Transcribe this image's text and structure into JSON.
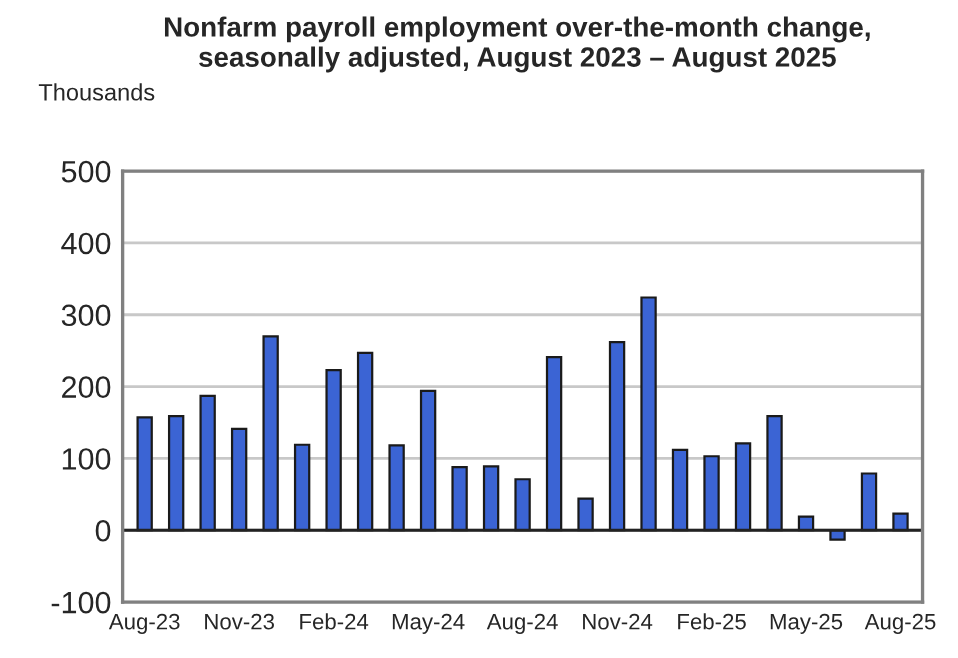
{
  "chart_data": {
    "type": "bar",
    "title": "Nonfarm payroll employment over-the-month change,\nseasonally adjusted, August 2023 – August 2025",
    "ylabel": "Thousands",
    "categories": [
      "Aug-23",
      null,
      null,
      "Nov-23",
      null,
      null,
      "Feb-24",
      null,
      null,
      "May-24",
      null,
      null,
      "Aug-24",
      null,
      null,
      "Nov-24",
      null,
      null,
      "Feb-25",
      null,
      null,
      "May-25",
      null,
      null,
      "Aug-25"
    ],
    "values": [
      157,
      159,
      187,
      141,
      270,
      119,
      223,
      247,
      118,
      194,
      88,
      89,
      71,
      241,
      44,
      262,
      324,
      112,
      103,
      121,
      159,
      19,
      -13,
      79,
      23
    ],
    "color": "#3b64d4",
    "ylim": [
      -100,
      500
    ],
    "yticks": [
      -100,
      0,
      100,
      200,
      300,
      400,
      500
    ],
    "grid": "y"
  }
}
